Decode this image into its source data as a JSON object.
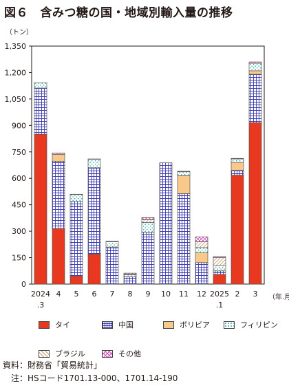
{
  "title": "図６　含みつ糖の国・地域別輸入量の推移",
  "notes": [
    "資料：財務省「貿易統計」",
    "　注：HSコード1701.13-000、1701.14-190"
  ],
  "colors": {
    "thai": "#e8381f",
    "china_fill": "#ffffff",
    "china_stroke": "#3f3bb0",
    "bolivia": "#f8c98a",
    "philippines": "#2aa7a7",
    "brazil": "#c49a6c",
    "other": "#d04bb6"
  },
  "chart_data": {
    "type": "bar",
    "stacked": true,
    "ylabel": "（トン）",
    "xlabel": "（年.月）",
    "ylim": [
      0,
      1350
    ],
    "yticks": [
      "0",
      "150",
      "300",
      "450",
      "600",
      "750",
      "900",
      "1,050",
      "1,200",
      "1,350"
    ],
    "ytick_values": [
      0,
      150,
      300,
      450,
      600,
      750,
      900,
      1050,
      1200,
      1350
    ],
    "categories": [
      "2024\n.3",
      "4",
      "5",
      "6",
      "7",
      "8",
      "9",
      "10",
      "11",
      "12",
      "2025\n.1",
      "2",
      "3"
    ],
    "legend": "bottom",
    "series": [
      {
        "name": "タイ",
        "key": "thai",
        "values": [
          850,
          315,
          45,
          170,
          0,
          0,
          0,
          0,
          0,
          0,
          55,
          618,
          915
        ]
      },
      {
        "name": "中国",
        "key": "china",
        "values": [
          262,
          382,
          425,
          490,
          210,
          42,
          295,
          688,
          513,
          122,
          20,
          27,
          275
        ]
      },
      {
        "name": "ボリビア",
        "key": "bolivia",
        "values": [
          0,
          38,
          0,
          0,
          0,
          0,
          0,
          0,
          102,
          55,
          0,
          45,
          20
        ]
      },
      {
        "name": "フィリピン",
        "key": "philippines",
        "values": [
          30,
          0,
          38,
          48,
          30,
          10,
          55,
          0,
          22,
          30,
          28,
          20,
          42
        ]
      },
      {
        "name": "ブラジル",
        "key": "brazil",
        "values": [
          0,
          0,
          0,
          0,
          0,
          5,
          15,
          0,
          0,
          33,
          48,
          0,
          0
        ]
      },
      {
        "name": "その他",
        "key": "other",
        "values": [
          0,
          8,
          2,
          2,
          3,
          5,
          12,
          0,
          3,
          28,
          5,
          3,
          8
        ]
      }
    ]
  }
}
